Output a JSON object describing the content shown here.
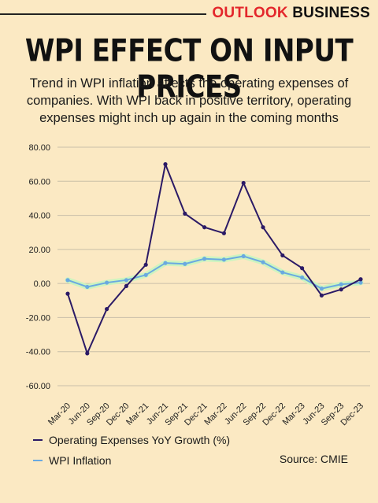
{
  "header": {
    "brand_part1": "OUTLOOK",
    "brand_part2": "BUSINESS",
    "title": "WPI EFFECT ON INPUT PRICES",
    "subtitle": "Trend in WPI inflation affects the operating expenses of companies. With WPI back in positive territory, operating expenses might inch up again in the coming months"
  },
  "source": "Source: CMIE",
  "colors": {
    "opex": "#2b1a66",
    "wpi": "#6aa9e0",
    "wpi_glow": "#c8f5c0",
    "grid": "#c9bfa8",
    "brand_red": "#e3262b"
  },
  "chart_data": {
    "type": "line",
    "categories": [
      "Mar-20",
      "Jun-20",
      "Sep-20",
      "Dec-20",
      "Mar-21",
      "Jun-21",
      "Sep-21",
      "Dec-21",
      "Mar-22",
      "Jun-22",
      "Sep-22",
      "Dec-22",
      "Mar-23",
      "Jun-23",
      "Sep-23",
      "Dec-23"
    ],
    "ylim": [
      -60,
      80
    ],
    "yticks": [
      "80.00",
      "60.00",
      "40.00",
      "20.00",
      "0.00",
      "-20.00",
      "-40.00",
      "-60.00"
    ],
    "ytick_values": [
      80,
      60,
      40,
      20,
      0,
      -20,
      -40,
      -60
    ],
    "grid": "horizontal",
    "legend_position": "bottom-left",
    "series": [
      {
        "name": "Operating Expenses YoY Growth (%)",
        "values": [
          -6,
          -41,
          -15,
          -1.5,
          11,
          70,
          41,
          33,
          29.5,
          59,
          33,
          16.5,
          9,
          -7,
          -3.5,
          2.5
        ]
      },
      {
        "name": "WPI Inflation",
        "values": [
          2,
          -2,
          0.5,
          2,
          5,
          12,
          11.5,
          14.5,
          14,
          16,
          12.5,
          6.5,
          3.5,
          -3,
          -0.5,
          0.5
        ]
      }
    ]
  }
}
